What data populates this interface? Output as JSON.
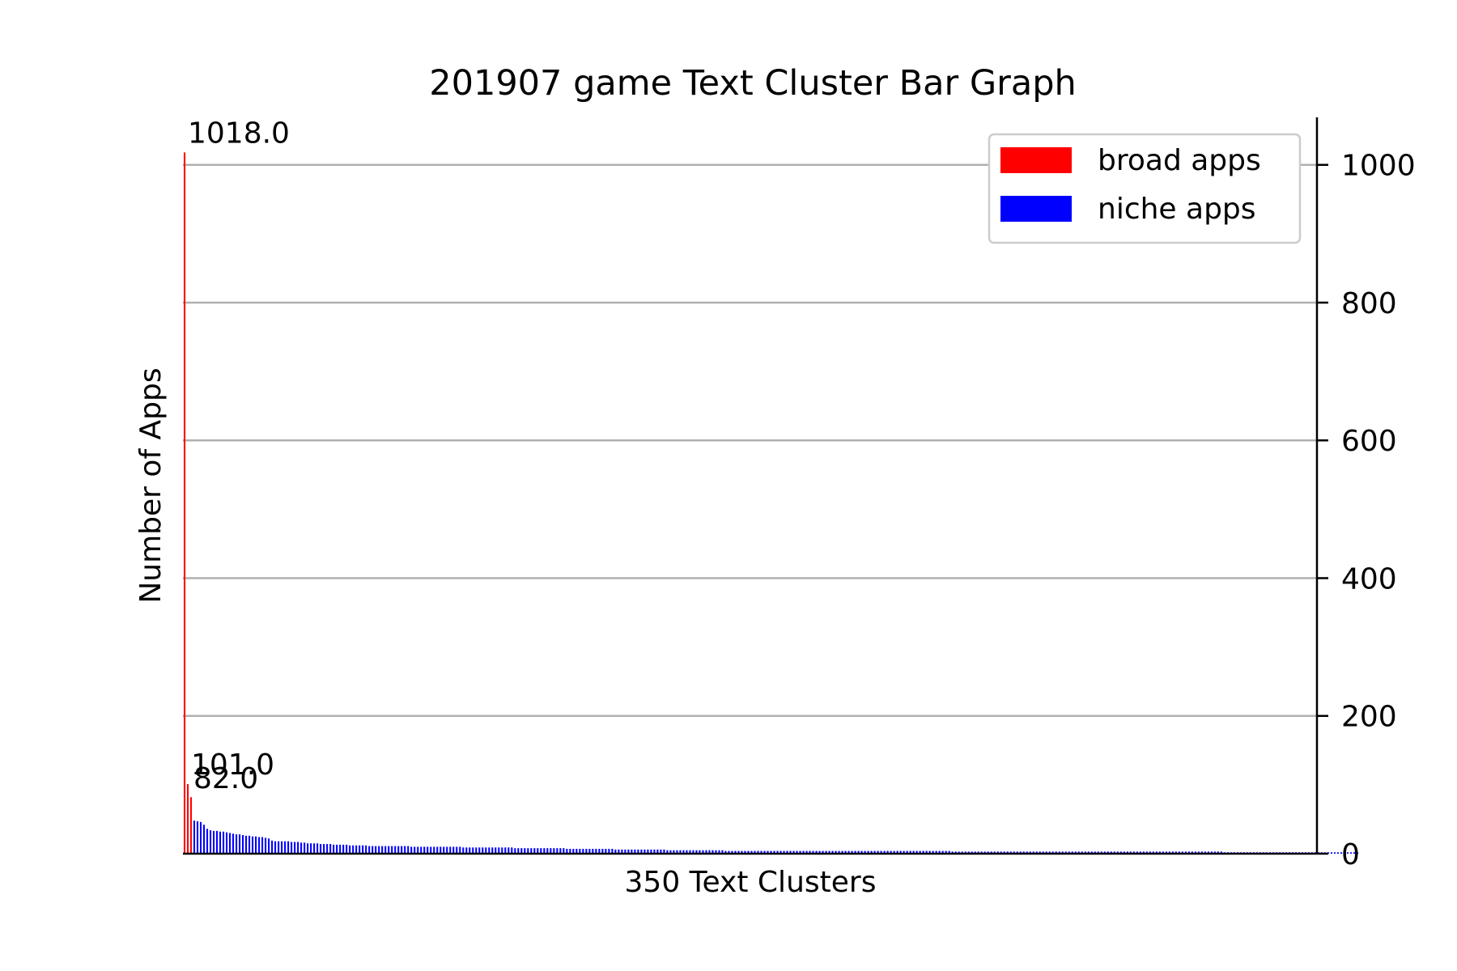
{
  "chart_data": {
    "type": "bar",
    "title": "201907 game Text Cluster Bar Graph",
    "xlabel": "350 Text Clusters",
    "ylabel": "Number of Apps",
    "ylim": [
      0,
      1069
    ],
    "yticks": [
      0,
      200,
      400,
      600,
      800,
      1000
    ],
    "ytick_labels": [
      "0",
      "200",
      "400",
      "600",
      "800",
      "1000"
    ],
    "y_axis_side": "right",
    "grid": "horizontal",
    "legend_position": "top-right",
    "cluster_count": 350,
    "series": [
      {
        "name": "broad apps",
        "color": "#ff0000",
        "values": [
          1018,
          101,
          82
        ]
      },
      {
        "name": "niche apps",
        "color": "#0000ff",
        "values": [
          48,
          47,
          46,
          42,
          36,
          34,
          33,
          33,
          32,
          32,
          31,
          30,
          29,
          28,
          28,
          27,
          26,
          26,
          25,
          25,
          24,
          24,
          23,
          22,
          19,
          18,
          18,
          18,
          18,
          18,
          17,
          17,
          17,
          16,
          16,
          15,
          15,
          15,
          15,
          14,
          14,
          14,
          14,
          13,
          13,
          13,
          13,
          13,
          12,
          12,
          12,
          12,
          12,
          12,
          11,
          11,
          11,
          11,
          11,
          11,
          11,
          11,
          11,
          11,
          11,
          11,
          11,
          10,
          10,
          10,
          10,
          10,
          10,
          10,
          10,
          10,
          10,
          10,
          10,
          10,
          10,
          10,
          10,
          9,
          9,
          9,
          9,
          9,
          9,
          9,
          9,
          9,
          9,
          9,
          9,
          9,
          9,
          9,
          9,
          8,
          8,
          8,
          8,
          8,
          8,
          8,
          8,
          8,
          8,
          8,
          8,
          8,
          8,
          8,
          8,
          7,
          7,
          7,
          7,
          7,
          7,
          7,
          7,
          7,
          7,
          7,
          7,
          7,
          7,
          7,
          6,
          6,
          6,
          6,
          6,
          6,
          6,
          6,
          6,
          6,
          6,
          6,
          6,
          6,
          6,
          6,
          5,
          5,
          5,
          5,
          5,
          5,
          5,
          5,
          5,
          5,
          5,
          5,
          5,
          5,
          5,
          5,
          5,
          5,
          4,
          4,
          4,
          4,
          4,
          4,
          4,
          4,
          4,
          4,
          4,
          4,
          4,
          4,
          4,
          4,
          4,
          4,
          4,
          4,
          4,
          4,
          4,
          4,
          4,
          4,
          4,
          4,
          4,
          4,
          4,
          4,
          4,
          4,
          4,
          4,
          4,
          4,
          4,
          4,
          4,
          4,
          4,
          4,
          4,
          4,
          4,
          4,
          4,
          4,
          4,
          4,
          4,
          4,
          4,
          4,
          4,
          4,
          4,
          4,
          4,
          4,
          4,
          4,
          4,
          4,
          4,
          4,
          4,
          4,
          3,
          3,
          3,
          3,
          3,
          3,
          3,
          3,
          3,
          3,
          3,
          3,
          3,
          3,
          3,
          3,
          3,
          3,
          3,
          3,
          3,
          3,
          3,
          3,
          3,
          3,
          3,
          3,
          3,
          3,
          3,
          3,
          3,
          3,
          3,
          3,
          3,
          3,
          3,
          3,
          3,
          3,
          3,
          3,
          3,
          3,
          3,
          3,
          3,
          3,
          3,
          3,
          3,
          3,
          3,
          3,
          3,
          3,
          3,
          3,
          3,
          3,
          3,
          3,
          3,
          3,
          3,
          3,
          3,
          3,
          3,
          3,
          3,
          3,
          3,
          3,
          3,
          3,
          3,
          3,
          3,
          3,
          3,
          3,
          2,
          2,
          2,
          2,
          2,
          2,
          2,
          2,
          2,
          2,
          2,
          2,
          2,
          2,
          2,
          2,
          2,
          2,
          2,
          2,
          2,
          2,
          2,
          2,
          2,
          2,
          2,
          2,
          2,
          2,
          2,
          2,
          2,
          2,
          2,
          2,
          2,
          2,
          2,
          2,
          2,
          2
        ]
      }
    ],
    "data_labels": [
      "1018.0",
      "101.0",
      "82.0"
    ]
  }
}
